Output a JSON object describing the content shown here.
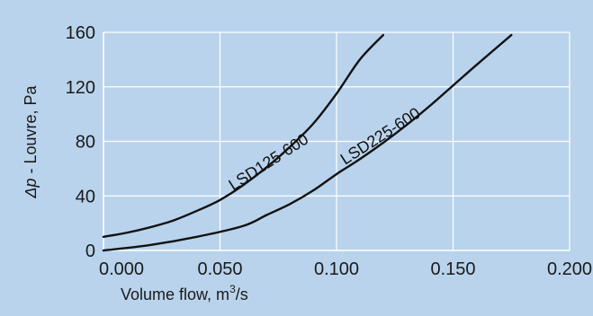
{
  "chart_data": {
    "type": "line",
    "xlabel_main": "Volume flow, m",
    "xlabel_sup": "3",
    "xlabel_tail": "/s",
    "ylabel_italic": "Δp",
    "ylabel_rest": " - Louvre, Pa",
    "xlim": [
      0,
      0.2
    ],
    "ylim": [
      0,
      160
    ],
    "x_ticks": [
      "0.000",
      "0.050",
      "0.100",
      "0.150",
      "0.200"
    ],
    "x_tick_values": [
      0,
      0.05,
      0.1,
      0.15,
      0.2
    ],
    "y_ticks": [
      "0",
      "40",
      "80",
      "120",
      "160"
    ],
    "y_tick_values": [
      0,
      40,
      80,
      120,
      160
    ],
    "grid": true,
    "series": [
      {
        "name": "LSD125-600",
        "x": [
          0,
          0.01,
          0.02,
          0.03,
          0.04,
          0.05,
          0.06,
          0.07,
          0.08,
          0.09,
          0.1,
          0.11,
          0.12
        ],
        "y": [
          10,
          13,
          17,
          22,
          29,
          37,
          48,
          61,
          76,
          93,
          115,
          140,
          158
        ]
      },
      {
        "name": "LSD225-600",
        "x": [
          0,
          0.02,
          0.04,
          0.06,
          0.07,
          0.08,
          0.09,
          0.1,
          0.11,
          0.12,
          0.13,
          0.14,
          0.15,
          0.16,
          0.175
        ],
        "y": [
          0,
          4,
          10,
          18,
          26,
          34,
          44,
          56,
          67,
          79,
          92,
          106,
          121,
          136,
          158
        ]
      }
    ]
  }
}
